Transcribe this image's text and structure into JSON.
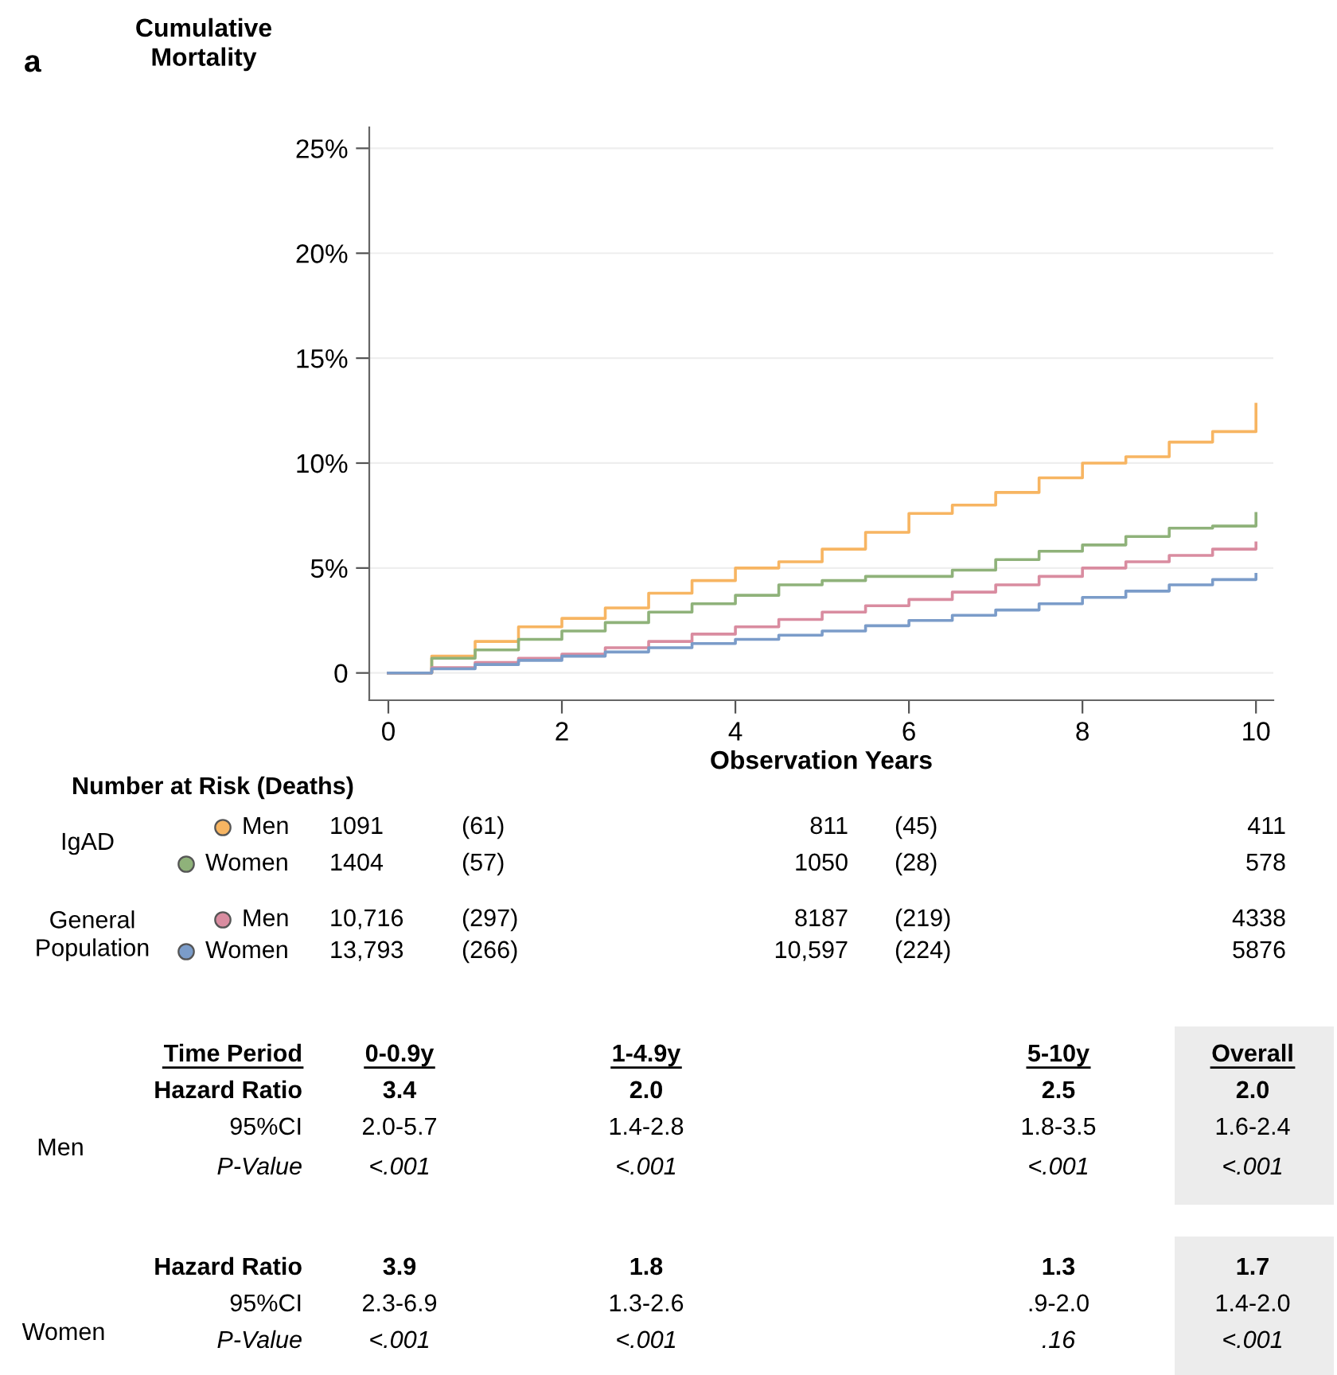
{
  "chart_data": {
    "type": "step",
    "ylabel": "Cumulative\nMortality",
    "xlabel": "Observation Years",
    "xlim": [
      -0.22,
      10.2
    ],
    "xticks": [
      0,
      2,
      4,
      6,
      8,
      10
    ],
    "ylim": [
      -1.3,
      26
    ],
    "yticks": [
      {
        "value": 0,
        "label": "0"
      },
      {
        "value": 5,
        "label": "5%"
      },
      {
        "value": 10,
        "label": "10%"
      },
      {
        "value": 15,
        "label": "15%"
      },
      {
        "value": 20,
        "label": "20%"
      },
      {
        "value": 25,
        "label": "25%"
      }
    ],
    "grid": "y",
    "legend": "bottom",
    "x": [
      0,
      0.5,
      1,
      1.5,
      2,
      2.5,
      3,
      3.5,
      4,
      4.5,
      5,
      5.5,
      6,
      6.5,
      7,
      7.5,
      8,
      8.5,
      9,
      9.5,
      10
    ],
    "series": [
      {
        "name": "Men",
        "color": "#f7b562",
        "values": [
          0,
          0.8,
          1.5,
          2.2,
          2.6,
          3.1,
          3.8,
          4.4,
          5.0,
          5.3,
          5.9,
          6.7,
          7.6,
          8.0,
          8.6,
          9.3,
          10.0,
          10.3,
          11.0,
          11.5,
          12.8
        ]
      },
      {
        "name": "Women",
        "color": "#8fb27a",
        "values": [
          0,
          0.7,
          1.1,
          1.6,
          2.0,
          2.4,
          2.9,
          3.3,
          3.7,
          4.2,
          4.4,
          4.6,
          4.6,
          4.9,
          5.4,
          5.8,
          6.1,
          6.5,
          6.9,
          7.0,
          7.6
        ]
      },
      {
        "name": "Men",
        "color": "#d98ca0",
        "values": [
          0,
          0.25,
          0.5,
          0.7,
          0.9,
          1.2,
          1.5,
          1.85,
          2.2,
          2.55,
          2.9,
          3.2,
          3.5,
          3.85,
          4.2,
          4.6,
          5.0,
          5.3,
          5.6,
          5.9,
          6.2
        ]
      },
      {
        "name": "Women",
        "color": "#7b9cc9",
        "values": [
          0,
          0.2,
          0.4,
          0.6,
          0.8,
          1.0,
          1.2,
          1.4,
          1.6,
          1.8,
          2.0,
          2.25,
          2.5,
          2.75,
          3.0,
          3.3,
          3.6,
          3.9,
          4.2,
          4.45,
          4.7
        ]
      }
    ],
    "annotations": [
      "a",
      "Number at Risk (Deaths)",
      "IgAD",
      "General\nPopulation",
      "1091",
      "(61)",
      "811",
      "(45)",
      "411",
      "1404",
      "(57)",
      "1050",
      "(28)",
      "578",
      "10,716",
      "(297)",
      "8187",
      "(219)",
      "4338",
      "13,793",
      "(266)",
      "10,597",
      "(224)",
      "5876",
      "Time Period",
      "0-0.9y",
      "1-4.9y",
      "5-10y",
      "Overall",
      "Men",
      "Hazard Ratio",
      "3.4",
      "2.0",
      "2.5",
      "2.0",
      "95%CI",
      "2.0-5.7",
      "1.4-2.8",
      "1.8-3.5",
      "1.6-2.4",
      "P-Value",
      "<.001",
      "<.001",
      "<.001",
      "<.001",
      "Women",
      "Hazard Ratio",
      "3.9",
      "1.8",
      "1.3",
      "1.7",
      "95%CI",
      "2.3-6.9",
      "1.3-2.6",
      ".9-2.0",
      "1.4-2.0",
      "P-Value",
      "<.001",
      "<.001",
      ".16",
      "<.001"
    ]
  }
}
